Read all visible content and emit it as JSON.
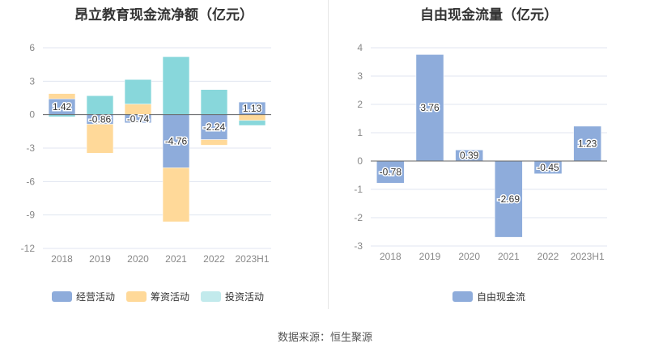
{
  "chart_data": [
    {
      "type": "bar",
      "stacked": true,
      "title": "昂立教育现金流净额（亿元）",
      "categories": [
        "2018",
        "2019",
        "2020",
        "2021",
        "2022",
        "2023H1"
      ],
      "ylim": [
        -12,
        6
      ],
      "yticks": [
        6,
        3,
        0,
        -3,
        -6,
        -9,
        -12
      ],
      "series": [
        {
          "name": "经营活动",
          "color": "#8eacdb",
          "values": [
            1.42,
            -0.86,
            -0.74,
            -4.76,
            -2.24,
            1.13
          ],
          "labels": [
            "1.42",
            "-0.86",
            "-0.74",
            "-4.76",
            "-2.24",
            "1.13"
          ]
        },
        {
          "name": "筹资活动",
          "color": "#ffd999",
          "values": [
            0.47,
            -2.6,
            0.95,
            -4.85,
            -0.5,
            -0.52
          ]
        },
        {
          "name": "投资活动",
          "color": "#88d7db",
          "values": [
            -0.2,
            1.7,
            2.2,
            5.2,
            2.25,
            -0.45
          ]
        }
      ],
      "legend": "bottom"
    },
    {
      "type": "bar",
      "title": "自由现金流量（亿元）",
      "categories": [
        "2018",
        "2019",
        "2020",
        "2021",
        "2022",
        "2023H1"
      ],
      "ylim": [
        -3,
        4
      ],
      "yticks": [
        4,
        3,
        2,
        1,
        0,
        -1,
        -2,
        -3
      ],
      "series": [
        {
          "name": "自由现金流",
          "color": "#8eacdb",
          "values": [
            -0.78,
            3.76,
            0.39,
            -2.69,
            -0.45,
            1.23
          ],
          "labels": [
            "-0.78",
            "3.76",
            "0.39",
            "-2.69",
            "-0.45",
            "1.23"
          ]
        }
      ],
      "legend": "bottom"
    }
  ],
  "source": "数据来源：恒生聚源"
}
